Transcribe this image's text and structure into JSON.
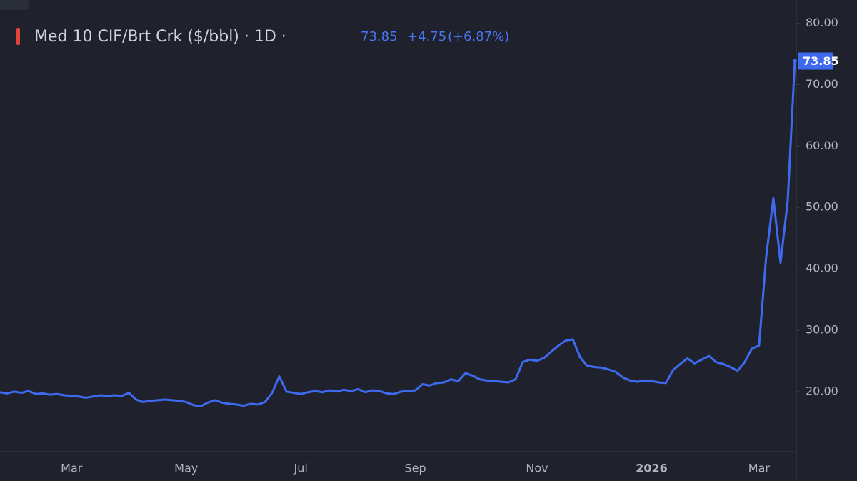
{
  "chart_data": {
    "type": "line",
    "title": "Med 10 CIF/Brt Crk ($/bbl) · 1D ·",
    "change": "+4.75",
    "change_pct": "(+6.87%)",
    "categories": [
      null,
      null,
      null,
      null,
      null,
      null,
      null,
      null,
      null,
      null,
      "Mar",
      null,
      null,
      null,
      null,
      null,
      null,
      null,
      null,
      null,
      null,
      null,
      null,
      null,
      null,
      null,
      "May",
      null,
      null,
      null,
      null,
      null,
      null,
      null,
      null,
      null,
      null,
      null,
      null,
      null,
      null,
      null,
      "Jul",
      null,
      null,
      null,
      null,
      null,
      null,
      null,
      null,
      null,
      null,
      null,
      null,
      null,
      null,
      null,
      "Sep",
      null,
      null,
      null,
      null,
      null,
      null,
      null,
      null,
      null,
      null,
      null,
      null,
      null,
      null,
      null,
      null,
      "Nov",
      null,
      null,
      null,
      null,
      null,
      null,
      null,
      null,
      null,
      null,
      null,
      null,
      null,
      null,
      null,
      "2026",
      null,
      null,
      null,
      null,
      null,
      null,
      null,
      null,
      null,
      null,
      null,
      null,
      null,
      null,
      "Mar",
      null,
      null,
      null,
      null,
      null
    ],
    "series": [
      {
        "name": "Med 10 CIF/Brt Crk",
        "color": "#3e6af0",
        "values": [
          19.9,
          19.7,
          20.0,
          19.8,
          20.1,
          19.6,
          19.7,
          19.5,
          19.6,
          19.4,
          19.3,
          19.2,
          19.0,
          19.2,
          19.4,
          19.3,
          19.4,
          19.3,
          19.8,
          18.7,
          18.3,
          18.5,
          18.6,
          18.7,
          18.6,
          18.5,
          18.3,
          17.8,
          17.6,
          18.2,
          18.6,
          18.2,
          18.0,
          17.9,
          17.7,
          18.0,
          17.9,
          18.3,
          19.8,
          22.5,
          20.0,
          19.8,
          19.6,
          19.9,
          20.1,
          19.9,
          20.2,
          20.0,
          20.3,
          20.1,
          20.4,
          19.9,
          20.2,
          20.1,
          19.7,
          19.6,
          20.0,
          20.1,
          20.2,
          21.2,
          21.0,
          21.4,
          21.5,
          22.0,
          21.7,
          23.0,
          22.6,
          22.0,
          21.8,
          21.7,
          21.6,
          21.5,
          22.0,
          24.8,
          25.2,
          25.0,
          25.5,
          26.5,
          27.5,
          28.3,
          28.5,
          25.6,
          24.2,
          24.0,
          23.9,
          23.6,
          23.2,
          22.3,
          21.8,
          21.6,
          21.8,
          21.7,
          21.5,
          21.4,
          23.5,
          24.5,
          25.4,
          24.6,
          25.2,
          25.8,
          24.8,
          24.5,
          24.0,
          23.4,
          24.8,
          27.0,
          27.5,
          42.0,
          51.5,
          41.0,
          51.0,
          73.85
        ]
      }
    ],
    "ylim": [
      10.2,
      83.8
    ],
    "yticks": [
      {
        "value": 20,
        "label": "20.00"
      },
      {
        "value": 30,
        "label": "30.00"
      },
      {
        "value": 40,
        "label": "40.00"
      },
      {
        "value": 50,
        "label": "50.00"
      },
      {
        "value": 60,
        "label": "60.00"
      },
      {
        "value": 70,
        "label": "70.00"
      },
      {
        "value": 80,
        "label": "80.00"
      }
    ]
  }
}
